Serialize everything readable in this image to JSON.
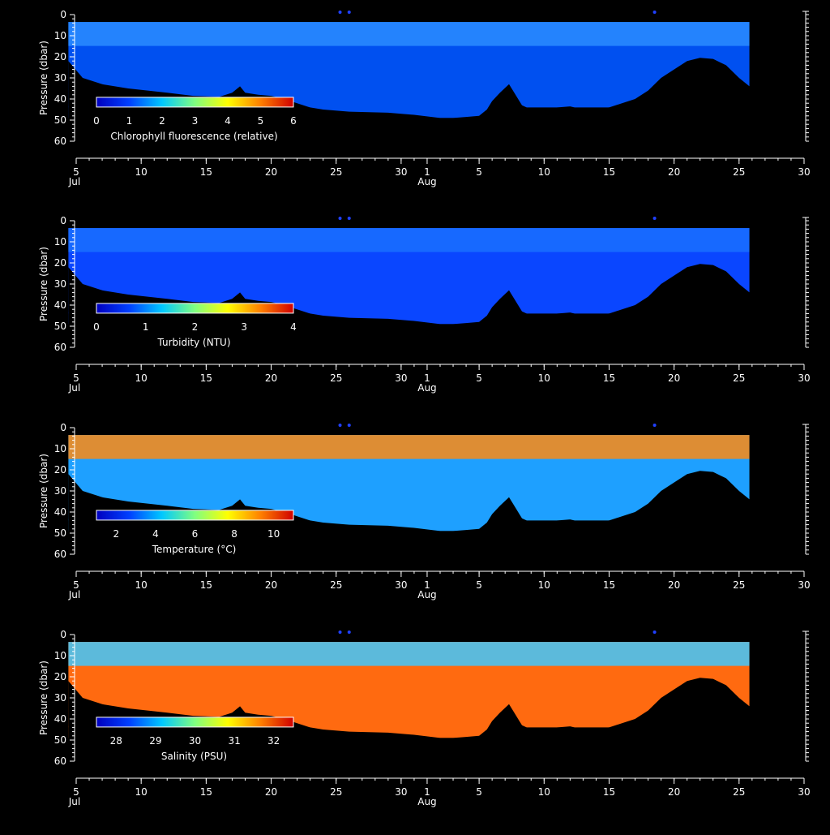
{
  "chart_data": [
    {
      "type": "heatmap",
      "ylabel": "Pressure (dbar)",
      "ylim": [
        0,
        60
      ],
      "yticks": [
        0,
        10,
        20,
        30,
        40,
        50,
        60
      ],
      "colorbar": {
        "label": "Chlorophyll fluorescence (relative)",
        "min": 0,
        "max": 6,
        "ticks": [
          0,
          1,
          2,
          3,
          4,
          5,
          6
        ],
        "colors": [
          "#0000c0",
          "#0040ff",
          "#00c8ff",
          "#80ff80",
          "#ffff00",
          "#ff8000",
          "#d00000"
        ]
      },
      "field": {
        "background": "#0050f0",
        "surface": "#2a8cff"
      },
      "xaxis": {
        "start": "5 Jul",
        "end": "30 Aug",
        "ticks": [
          "5",
          "10",
          "15",
          "20",
          "25",
          "30",
          "1",
          "5",
          "10",
          "15",
          "20",
          "25",
          "30"
        ],
        "month_labels": [
          "Jul",
          "Aug"
        ]
      }
    },
    {
      "type": "heatmap",
      "ylabel": "Pressure (dbar)",
      "ylim": [
        0,
        60
      ],
      "yticks": [
        0,
        10,
        20,
        30,
        40,
        50,
        60
      ],
      "colorbar": {
        "label": "Turbidity (NTU)",
        "min": 0,
        "max": 4,
        "ticks": [
          0,
          1,
          2,
          3,
          4
        ],
        "colors": [
          "#0000c0",
          "#0040ff",
          "#00c8ff",
          "#80ff80",
          "#ffff00",
          "#ff8000",
          "#d00000"
        ]
      },
      "field": {
        "background": "#0a46ff",
        "surface": "#1a70ff"
      },
      "xaxis": {
        "start": "5 Jul",
        "end": "30 Aug",
        "ticks": [
          "5",
          "10",
          "15",
          "20",
          "25",
          "30",
          "1",
          "5",
          "10",
          "15",
          "20",
          "25",
          "30"
        ],
        "month_labels": [
          "Jul",
          "Aug"
        ]
      }
    },
    {
      "type": "heatmap",
      "ylabel": "Pressure (dbar)",
      "ylim": [
        0,
        60
      ],
      "yticks": [
        0,
        10,
        20,
        30,
        40,
        50,
        60
      ],
      "colorbar": {
        "label": "Temperature (°C)",
        "min": 1,
        "max": 11,
        "ticks": [
          2,
          4,
          6,
          8,
          10
        ],
        "colors": [
          "#0000c0",
          "#0040ff",
          "#00c8ff",
          "#80ff80",
          "#ffff00",
          "#ff8000",
          "#d00000"
        ]
      },
      "field": {
        "background": "#1ea0ff",
        "surface": "#ff8a10"
      },
      "xaxis": {
        "start": "5 Jul",
        "end": "30 Aug",
        "ticks": [
          "5",
          "10",
          "15",
          "20",
          "25",
          "30",
          "1",
          "5",
          "10",
          "15",
          "20",
          "25",
          "30"
        ],
        "month_labels": [
          "Jul",
          "Aug"
        ]
      }
    },
    {
      "type": "heatmap",
      "ylabel": "Pressure (dbar)",
      "ylim": [
        0,
        60
      ],
      "yticks": [
        0,
        10,
        20,
        30,
        40,
        50,
        60
      ],
      "colorbar": {
        "label": "Salinity (PSU)",
        "min": 27.5,
        "max": 32.5,
        "ticks": [
          28,
          29,
          30,
          31,
          32
        ],
        "colors": [
          "#0000c0",
          "#0040ff",
          "#00c8ff",
          "#80ff80",
          "#ffff00",
          "#ff8000",
          "#d00000"
        ]
      },
      "field": {
        "background": "#ff6a10",
        "surface": "#40c8ff"
      },
      "xaxis": {
        "start": "5 Jul",
        "end": "30 Aug",
        "ticks": [
          "5",
          "10",
          "15",
          "20",
          "25",
          "30",
          "1",
          "5",
          "10",
          "15",
          "20",
          "25",
          "30"
        ],
        "month_labels": [
          "Jul",
          "Aug"
        ]
      }
    }
  ]
}
